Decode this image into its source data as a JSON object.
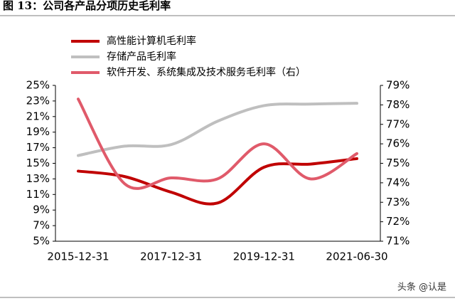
{
  "chart_data": {
    "type": "line",
    "title": "图 13：公司各产品分项历史毛利率",
    "categories": [
      "2015-12-31",
      null,
      "2017-12-31",
      null,
      "2019-12-31",
      null,
      "2021-06-30"
    ],
    "series": [
      {
        "name": "高性能计算机毛利率",
        "color": "#c00000",
        "values": [
          14.0,
          13.3,
          11.3,
          9.9,
          14.5,
          14.9,
          15.6
        ]
      },
      {
        "name": "存储产品毛利率",
        "color": "#bfbfbf",
        "values": [
          16.0,
          17.2,
          17.4,
          20.4,
          22.4,
          22.6,
          22.7
        ]
      },
      {
        "name": "软件开发、系统集成及技术服务毛利率（右）",
        "color": "#e05a6a",
        "axis": "y2",
        "values": [
          78.3,
          73.95,
          74.25,
          74.2,
          76.0,
          74.2,
          75.5
        ]
      }
    ],
    "ylim": [
      5,
      25
    ],
    "yticks": [
      {
        "value": 5,
        "label": "5%"
      },
      {
        "value": 7,
        "label": "7%"
      },
      {
        "value": 9,
        "label": "9%"
      },
      {
        "value": 11,
        "label": "11%"
      },
      {
        "value": 13,
        "label": "13%"
      },
      {
        "value": 15,
        "label": "15%"
      },
      {
        "value": 17,
        "label": "17%"
      },
      {
        "value": 19,
        "label": "19%"
      },
      {
        "value": 21,
        "label": "21%"
      },
      {
        "value": 23,
        "label": "23%"
      },
      {
        "value": 25,
        "label": "25%"
      }
    ],
    "y2lim": [
      71,
      79
    ],
    "y2ticks": [
      {
        "value": 71,
        "label": "71%"
      },
      {
        "value": 72,
        "label": "72%"
      },
      {
        "value": 73,
        "label": "73%"
      },
      {
        "value": 74,
        "label": "74%"
      },
      {
        "value": 75,
        "label": "75%"
      },
      {
        "value": 76,
        "label": "76%"
      },
      {
        "value": 77,
        "label": "77%"
      },
      {
        "value": 78,
        "label": "78%"
      },
      {
        "value": 79,
        "label": "79%"
      }
    ],
    "watermark": "头条 @认是"
  }
}
